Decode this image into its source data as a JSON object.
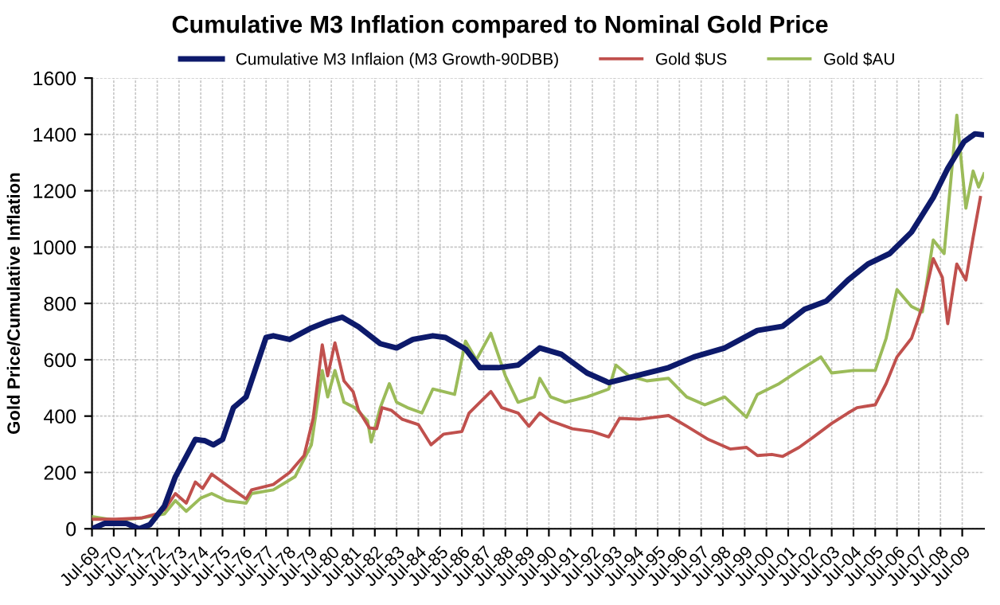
{
  "chart_data": {
    "type": "line",
    "title": "Cumulative M3 Inflation compared to Nominal Gold Price",
    "ylabel": "Gold Price/Cumulative Inflation",
    "xlim": [
      "1969-07",
      "2010-07"
    ],
    "ylim": [
      0,
      1600
    ],
    "yticks": [
      0,
      200,
      400,
      600,
      800,
      1000,
      1200,
      1400,
      1600
    ],
    "xticks": [
      {
        "value": "1969-07",
        "label": "Jul-69"
      },
      {
        "value": "1970-07",
        "label": "Jul-70"
      },
      {
        "value": "1971-07",
        "label": "Jul-71"
      },
      {
        "value": "1972-07",
        "label": "Jul-72"
      },
      {
        "value": "1973-07",
        "label": "Jul-73"
      },
      {
        "value": "1974-07",
        "label": "Jul-74"
      },
      {
        "value": "1975-07",
        "label": "Jul-75"
      },
      {
        "value": "1976-07",
        "label": "Jul-76"
      },
      {
        "value": "1977-07",
        "label": "Jul-77"
      },
      {
        "value": "1978-07",
        "label": "Jul-78"
      },
      {
        "value": "1979-07",
        "label": "Jul-79"
      },
      {
        "value": "1980-07",
        "label": "Jul-80"
      },
      {
        "value": "1981-07",
        "label": "Jul-81"
      },
      {
        "value": "1982-07",
        "label": "Jul-82"
      },
      {
        "value": "1983-07",
        "label": "Jul-83"
      },
      {
        "value": "1984-07",
        "label": "Jul-84"
      },
      {
        "value": "1985-07",
        "label": "Jul-85"
      },
      {
        "value": "1986-07",
        "label": "Jul-86"
      },
      {
        "value": "1987-07",
        "label": "Jul-87"
      },
      {
        "value": "1988-07",
        "label": "Jul-88"
      },
      {
        "value": "1989-07",
        "label": "Jul-89"
      },
      {
        "value": "1990-07",
        "label": "Jul-90"
      },
      {
        "value": "1991-07",
        "label": "Jul-91"
      },
      {
        "value": "1992-07",
        "label": "Jul-92"
      },
      {
        "value": "1993-07",
        "label": "Jul-93"
      },
      {
        "value": "1994-07",
        "label": "Jul-94"
      },
      {
        "value": "1995-07",
        "label": "Jul-95"
      },
      {
        "value": "1996-07",
        "label": "Jul-96"
      },
      {
        "value": "1997-07",
        "label": "Jul-97"
      },
      {
        "value": "1998-07",
        "label": "Jul-98"
      },
      {
        "value": "1999-07",
        "label": "Jul-99"
      },
      {
        "value": "2000-07",
        "label": "Jul-00"
      },
      {
        "value": "2001-07",
        "label": "Jul-01"
      },
      {
        "value": "2002-07",
        "label": "Jul-02"
      },
      {
        "value": "2003-07",
        "label": "Jul-03"
      },
      {
        "value": "2004-07",
        "label": "Jul-04"
      },
      {
        "value": "2005-07",
        "label": "Jul-05"
      },
      {
        "value": "2006-07",
        "label": "Jul-06"
      },
      {
        "value": "2007-07",
        "label": "Jul-07"
      },
      {
        "value": "2008-07",
        "label": "Jul-08"
      },
      {
        "value": "2009-07",
        "label": "Jul-09"
      }
    ],
    "grid": true,
    "legend": "top",
    "marker": "none",
    "line_style": "solid",
    "series": [
      {
        "name": "Cumulative M3 Inflaion (M3 Growth-90DBB)",
        "color": "#0d1a6b",
        "x": [
          "1969-07",
          "1970-02",
          "1971-02",
          "1971-09",
          "1972-03",
          "1972-11",
          "1973-05",
          "1974-04",
          "1974-09",
          "1975-02",
          "1975-07",
          "1976-01",
          "1976-08",
          "1977-07",
          "1977-11",
          "1978-08",
          "1979-08",
          "1980-05",
          "1981-01",
          "1981-10",
          "1982-10",
          "1983-07",
          "1984-04",
          "1985-03",
          "1985-10",
          "1986-09",
          "1987-05",
          "1988-03",
          "1989-02",
          "1990-02",
          "1991-02",
          "1992-04",
          "1993-04",
          "1994-07",
          "1996-01",
          "1997-03",
          "1998-08",
          "2000-02",
          "2001-04",
          "2002-04",
          "2003-04",
          "2004-04",
          "2005-03",
          "2006-03",
          "2007-03",
          "2008-03",
          "2008-11",
          "2009-08",
          "2010-02",
          "2010-07"
        ],
        "values": [
          0,
          19,
          19,
          0,
          15,
          81,
          185,
          317,
          313,
          298,
          317,
          430,
          468,
          679,
          685,
          672,
          713,
          736,
          751,
          717,
          657,
          642,
          672,
          685,
          679,
          638,
          572,
          572,
          581,
          642,
          619,
          553,
          519,
          543,
          572,
          610,
          642,
          704,
          719,
          779,
          808,
          883,
          940,
          977,
          1053,
          1176,
          1279,
          1374,
          1402,
          1398
        ]
      },
      {
        "name": "Gold $US",
        "color": "#c0504d",
        "x": [
          "1969-07",
          "1970-08",
          "1971-10",
          "1972-07",
          "1972-11",
          "1973-05",
          "1973-11",
          "1974-04",
          "1974-08",
          "1975-01",
          "1975-07",
          "1976-01",
          "1976-08",
          "1976-11",
          "1977-11",
          "1978-08",
          "1979-04",
          "1979-09",
          "1980-02",
          "1980-05",
          "1980-09",
          "1981-02",
          "1981-07",
          "1981-10",
          "1982-04",
          "1982-08",
          "1982-11",
          "1983-04",
          "1983-10",
          "1984-07",
          "1985-02",
          "1985-09",
          "1986-07",
          "1986-11",
          "1987-11",
          "1988-05",
          "1989-02",
          "1989-08",
          "1990-02",
          "1990-08",
          "1991-08",
          "1992-07",
          "1993-04",
          "1993-10",
          "1994-09",
          "1996-01",
          "1996-11",
          "1997-11",
          "1998-11",
          "1999-08",
          "2000-02",
          "2000-10",
          "2001-04",
          "2002-01",
          "2002-09",
          "2003-07",
          "2004-04",
          "2004-09",
          "2005-07",
          "2006-01",
          "2006-07",
          "2007-03",
          "2007-09",
          "2008-03",
          "2008-08",
          "2008-11",
          "2009-04",
          "2009-09",
          "2010-01",
          "2010-05"
        ],
        "values": [
          34,
          34,
          38,
          53,
          68,
          125,
          91,
          166,
          143,
          194,
          166,
          138,
          106,
          138,
          157,
          200,
          260,
          392,
          653,
          543,
          660,
          525,
          487,
          421,
          358,
          355,
          430,
          421,
          389,
          370,
          298,
          336,
          345,
          411,
          487,
          430,
          411,
          364,
          411,
          383,
          355,
          345,
          326,
          392,
          389,
          402,
          364,
          317,
          283,
          289,
          260,
          264,
          257,
          289,
          326,
          374,
          411,
          430,
          440,
          515,
          610,
          676,
          789,
          959,
          893,
          728,
          940,
          883,
          1034,
          1176
        ]
      },
      {
        "name": "Gold $AU",
        "color": "#9bbb59",
        "x": [
          "1969-07",
          "1970-08",
          "1971-10",
          "1972-11",
          "1973-05",
          "1973-11",
          "1974-07",
          "1975-01",
          "1975-09",
          "1976-08",
          "1976-11",
          "1977-11",
          "1978-11",
          "1979-08",
          "1980-02",
          "1980-05",
          "1980-09",
          "1981-02",
          "1981-08",
          "1982-03",
          "1982-05",
          "1982-10",
          "1983-03",
          "1983-07",
          "1984-01",
          "1984-09",
          "1985-03",
          "1986-03",
          "1986-09",
          "1987-03",
          "1987-11",
          "1988-07",
          "1989-02",
          "1989-11",
          "1990-02",
          "1990-08",
          "1991-04",
          "1992-04",
          "1993-04",
          "1993-08",
          "1994-03",
          "1995-01",
          "1996-01",
          "1996-11",
          "1997-09",
          "1998-08",
          "1999-08",
          "2000-02",
          "2001-02",
          "2002-01",
          "2003-01",
          "2003-07",
          "2004-07",
          "2005-07",
          "2006-01",
          "2006-07",
          "2007-03",
          "2007-09",
          "2008-03",
          "2008-09",
          "2009-04",
          "2009-09",
          "2010-01",
          "2010-04",
          "2010-07"
        ],
        "values": [
          43,
          30,
          38,
          53,
          100,
          62,
          109,
          125,
          100,
          91,
          125,
          138,
          185,
          298,
          562,
          468,
          562,
          449,
          430,
          383,
          308,
          430,
          515,
          449,
          430,
          411,
          496,
          477,
          666,
          600,
          694,
          543,
          449,
          468,
          534,
          468,
          449,
          468,
          496,
          581,
          543,
          525,
          534,
          468,
          440,
          468,
          396,
          477,
          515,
          562,
          610,
          553,
          562,
          562,
          676,
          849,
          789,
          770,
          1025,
          977,
          1468,
          1138,
          1270,
          1213,
          1260
        ]
      }
    ]
  }
}
